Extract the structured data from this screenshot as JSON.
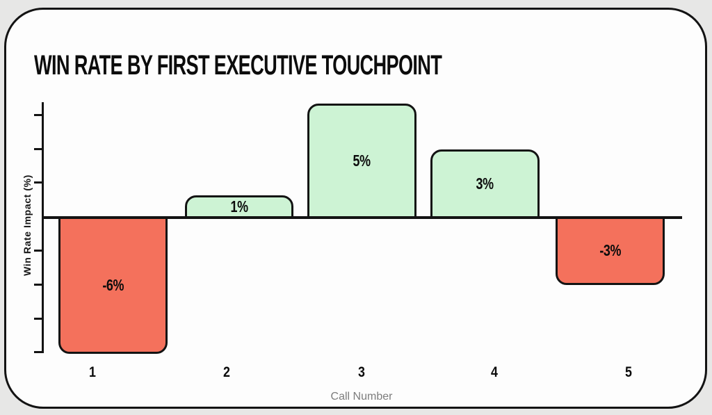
{
  "card": {
    "background": "#fdfdfd",
    "page_background": "#e7e7e6",
    "stroke_color": "#131313"
  },
  "chart_data": {
    "type": "bar",
    "title": "WIN RATE BY FIRST EXECUTIVE TOUCHPOINT",
    "xlabel": "Call Number",
    "ylabel": "Win Rate Impact (%)",
    "categories": [
      "1",
      "2",
      "3",
      "4",
      "5"
    ],
    "values": [
      -6,
      1,
      5,
      3,
      -3
    ],
    "bar_labels": [
      "-6%",
      "1%",
      "5%",
      "3%",
      "-3%"
    ],
    "ylim": [
      -6.5,
      5.5
    ],
    "grid": false,
    "legend": "none",
    "y_tick_labels_visible": false,
    "positive_color": "#cdf3d4",
    "negative_color": "#f4715c",
    "stroke_color": "#131313"
  }
}
